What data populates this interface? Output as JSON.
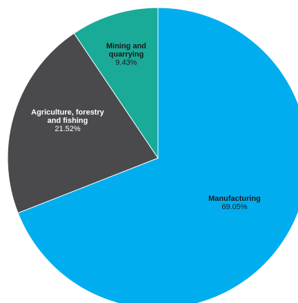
{
  "chart_data": {
    "type": "pie",
    "title": "",
    "start_angle_deg": 0,
    "direction": "clockwise",
    "slices": [
      {
        "label_lines": [
          "Manufacturing"
        ],
        "value": 69.05,
        "value_label": "69.05%",
        "color": "#00aeef",
        "label_color": "#1a1a1a"
      },
      {
        "label_lines": [
          "Agriculture, forestry",
          "and fishing"
        ],
        "value": 21.52,
        "value_label": "21.52%",
        "color": "#4a4a4d",
        "label_color": "#ffffff"
      },
      {
        "label_lines": [
          "Mining and",
          "quarrying"
        ],
        "value": 9.43,
        "value_label": "9.43%",
        "color": "#1aaa98",
        "label_color": "#1a1a1a"
      }
    ],
    "slice_border_color": "#ffffff"
  }
}
